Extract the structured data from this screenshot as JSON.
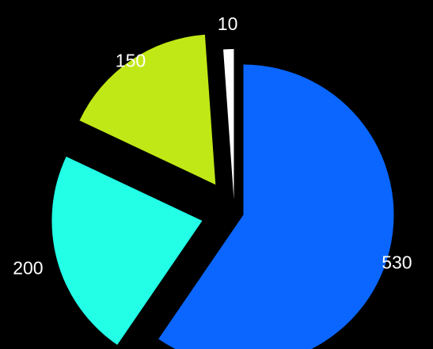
{
  "chart_data": {
    "type": "pie",
    "title": "",
    "slices": [
      {
        "label": "530",
        "value": 530,
        "color": "#0a66ff"
      },
      {
        "label": "200",
        "value": 200,
        "color": "#22ffe6"
      },
      {
        "label": "150",
        "value": 150,
        "color": "#c0e816"
      },
      {
        "label": "10",
        "value": 10,
        "color": "#ffffff"
      }
    ],
    "start_angle_deg": 0,
    "direction": "clockwise",
    "exploded": true,
    "legend": "none",
    "background": "#000000"
  }
}
